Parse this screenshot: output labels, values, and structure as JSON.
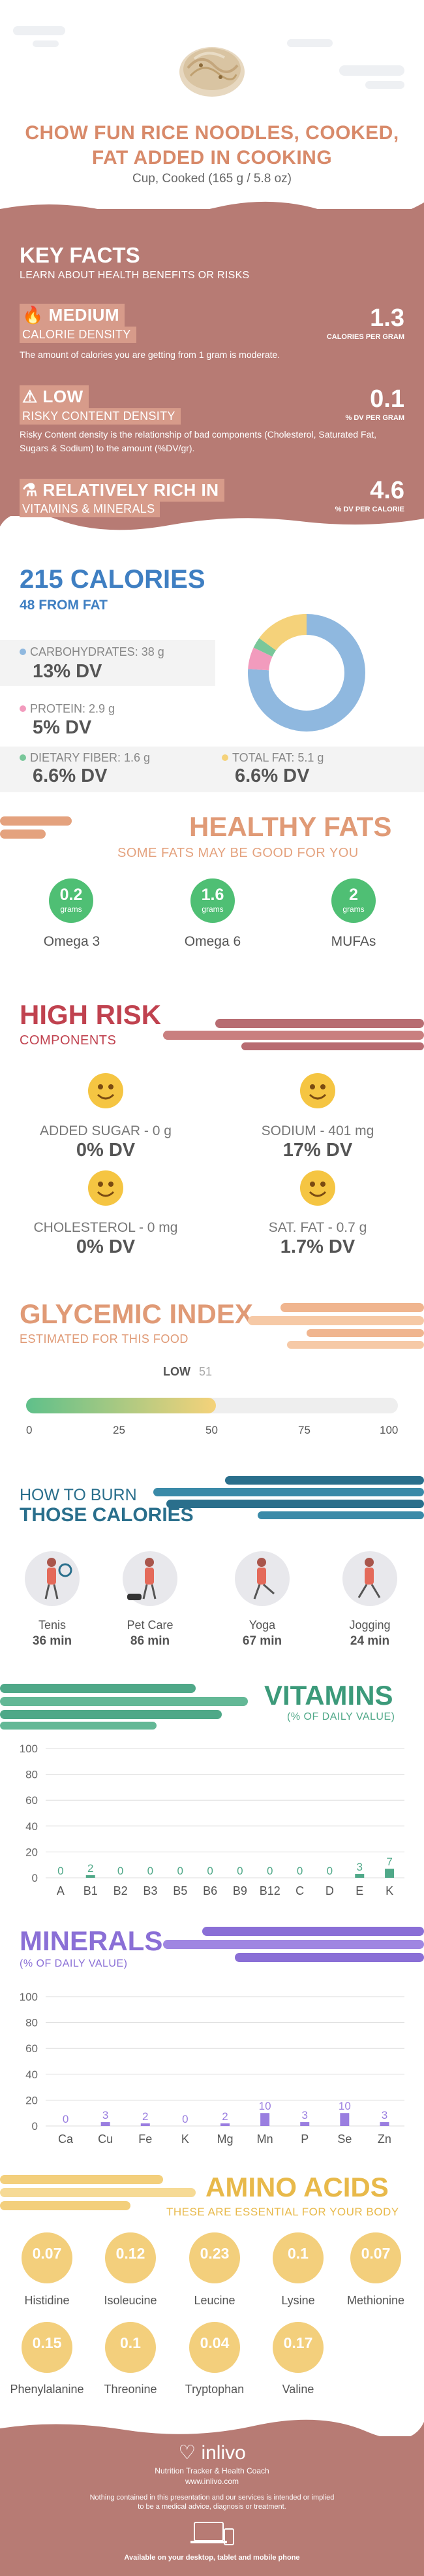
{
  "header": {
    "title_line1": "CHOW FUN RICE NOODLES, COOKED,",
    "title_line2": "FAT ADDED IN COOKING",
    "serving": "Cup, Cooked (165 g / 5.8 oz)"
  },
  "key_facts": {
    "title": "KEY FACTS",
    "subtitle": "LEARN ABOUT HEALTH BENEFITS OR RISKS",
    "calorie_density": {
      "level": "MEDIUM",
      "label": "CALORIE DENSITY",
      "value": "1.3",
      "unit": "CALORIES PER GRAM",
      "desc": "The amount of calories you are getting from 1 gram is moderate."
    },
    "risky_density": {
      "level": "LOW",
      "label": "RISKY CONTENT DENSITY",
      "value": "0.1",
      "unit": "% DV PER GRAM",
      "desc": "Risky Content density is the relationship of bad components (Cholesterol, Saturated Fat, Sugars & Sodium) to the amount (%DV/gr)."
    },
    "vitamins_minerals": {
      "level": "RELATIVELY RICH  IN",
      "label": "VITAMINS & MINERALS",
      "value": "4.6",
      "unit": "% DV PER CALORIE"
    }
  },
  "calories": {
    "title": "215 CALORIES",
    "subtitle": "48 FROM FAT",
    "carbs": {
      "label": "CARBOHYDRATES: 38 g",
      "dv": "13% DV",
      "color": "#8fb8df"
    },
    "protein": {
      "label": "PROTEIN: 2.9 g",
      "dv": "5% DV",
      "color": "#f29bbd"
    },
    "fiber": {
      "label": "DIETARY FIBER: 1.6 g",
      "dv": "6.6% DV",
      "color": "#79c79a"
    },
    "fat": {
      "label": "TOTAL FAT: 5.1 g",
      "dv": "6.6% DV",
      "color": "#f5d27a"
    }
  },
  "healthy_fats": {
    "title": "HEALTHY FATS",
    "subtitle": "SOME FATS MAY BE GOOD FOR YOU",
    "items": [
      {
        "value": "0.2",
        "unit": "grams",
        "label": "Omega 3"
      },
      {
        "value": "1.6",
        "unit": "grams",
        "label": "Omega 6"
      },
      {
        "value": "2",
        "unit": "grams",
        "label": "MUFAs"
      }
    ]
  },
  "high_risk": {
    "title": "HIGH RISK",
    "subtitle": "COMPONENTS",
    "items": [
      {
        "label": "ADDED SUGAR - 0 g",
        "dv": "0% DV"
      },
      {
        "label": "SODIUM - 401 mg",
        "dv": "17% DV"
      },
      {
        "label": "CHOLESTEROL - 0 mg",
        "dv": "0% DV"
      },
      {
        "label": "SAT. FAT - 0.7 g",
        "dv": "1.7% DV"
      }
    ]
  },
  "glycemic": {
    "title": "GLYCEMIC INDEX",
    "subtitle": "ESTIMATED FOR THIS FOOD",
    "level": "LOW",
    "value": "51",
    "value_num": 51,
    "ticks": [
      "0",
      "25",
      "50",
      "75",
      "100"
    ]
  },
  "burn": {
    "title1": "HOW TO BURN",
    "title2": "THOSE CALORIES",
    "items": [
      {
        "label": "Tenis",
        "minutes": "36 min"
      },
      {
        "label": "Pet Care",
        "minutes": "86 min"
      },
      {
        "label": "Yoga",
        "minutes": "67 min"
      },
      {
        "label": "Jogging",
        "minutes": "24 min"
      }
    ]
  },
  "vitamins": {
    "title": "VITAMINS",
    "subtitle": "(% OF DAILY VALUE)",
    "color": "#4fa888",
    "yticks": [
      "100",
      "80",
      "60",
      "40",
      "20",
      "0"
    ],
    "categories": [
      "A",
      "B1",
      "B2",
      "B3",
      "B5",
      "B6",
      "B9",
      "B12",
      "C",
      "D",
      "E",
      "K"
    ],
    "values": [
      0,
      2,
      0,
      0,
      0,
      0,
      0,
      0,
      0,
      0,
      3,
      7
    ],
    "labels": [
      "0",
      "2",
      "0",
      "0",
      "0",
      "0",
      "0",
      "0",
      "0",
      "0",
      "3",
      "7"
    ]
  },
  "minerals": {
    "title": "MINERALS",
    "subtitle": "(% OF DAILY VALUE)",
    "color": "#9a7ee0",
    "yticks": [
      "100",
      "80",
      "60",
      "40",
      "20",
      "0"
    ],
    "categories": [
      "Ca",
      "Cu",
      "Fe",
      "K",
      "Mg",
      "Mn",
      "P",
      "Se",
      "Zn"
    ],
    "values": [
      0,
      3,
      2,
      0,
      2,
      10,
      3,
      10,
      3
    ],
    "labels": [
      "0",
      "3",
      "2",
      "0",
      "2",
      "10",
      "3",
      "10",
      "3"
    ]
  },
  "amino": {
    "title": "AMINO ACIDS",
    "subtitle": "THESE ARE ESSENTIAL FOR YOUR BODY",
    "items": [
      {
        "value": "0.07",
        "unit": "g",
        "label": "Histidine"
      },
      {
        "value": "0.12",
        "unit": "g",
        "label": "Isoleucine"
      },
      {
        "value": "0.23",
        "unit": "g",
        "label": "Leucine"
      },
      {
        "value": "0.1",
        "unit": "g",
        "label": "Lysine"
      },
      {
        "value": "0.07",
        "unit": "g",
        "label": "Methionine"
      },
      {
        "value": "0.15",
        "unit": "g",
        "label": "Phenylalanine"
      },
      {
        "value": "0.1",
        "unit": "g",
        "label": "Threonine"
      },
      {
        "value": "0.04",
        "unit": "g",
        "label": "Tryptophan"
      },
      {
        "value": "0.17",
        "unit": "g",
        "label": "Valine"
      }
    ]
  },
  "footer": {
    "brand": "inlivo",
    "tagline": "Nutrition Tracker & Health Coach",
    "url": "www.inlivo.com",
    "disclaimer1": "Nothing contained in this presentation and our services is intended or implied",
    "disclaimer2": "to be a medical advice, diagnosis or treatment.",
    "available": "Available on your desktop, tablet and mobile phone"
  },
  "chart_data": [
    {
      "type": "pie",
      "categories": [
        "Carbohydrates",
        "Protein",
        "Dietary Fiber",
        "Total Fat"
      ],
      "values": [
        76,
        6,
        3,
        15
      ]
    },
    {
      "type": "bar",
      "title": "VITAMINS",
      "categories": [
        "A",
        "B1",
        "B2",
        "B3",
        "B5",
        "B6",
        "B9",
        "B12",
        "C",
        "D",
        "E",
        "K"
      ],
      "values": [
        0,
        2,
        0,
        0,
        0,
        0,
        0,
        0,
        0,
        0,
        3,
        7
      ],
      "ylim": [
        0,
        100
      ]
    },
    {
      "type": "bar",
      "title": "MINERALS",
      "categories": [
        "Ca",
        "Cu",
        "Fe",
        "K",
        "Mg",
        "Mn",
        "P",
        "Se",
        "Zn"
      ],
      "values": [
        0,
        3,
        2,
        0,
        2,
        10,
        3,
        10,
        3
      ],
      "ylim": [
        0,
        100
      ]
    }
  ]
}
